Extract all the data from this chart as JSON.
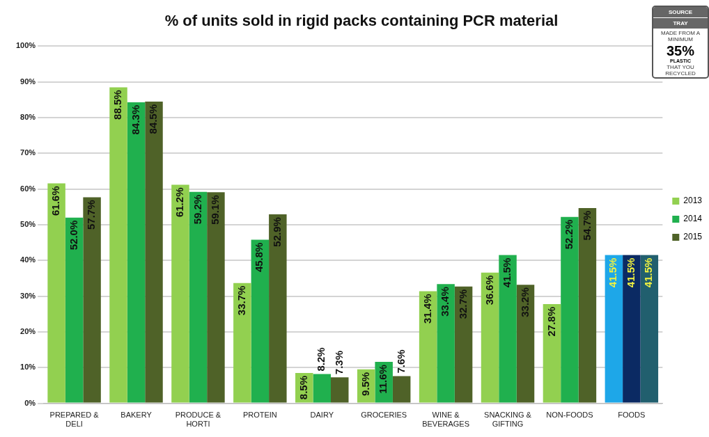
{
  "chart_data": {
    "type": "bar",
    "title": "% of units sold in rigid packs containing PCR material",
    "categories": [
      "PREPARED & DELI",
      "BAKERY",
      "PRODUCE & HORTI",
      "PROTEIN",
      "DAIRY",
      "GROCERIES",
      "WINE & BEVERAGES",
      "SNACKING & GIFTING",
      "NON-FOODS",
      "FOODS"
    ],
    "series": [
      {
        "name": "2013",
        "color": "#92d050",
        "colors": [
          "#92d050",
          "#92d050",
          "#92d050",
          "#92d050",
          "#92d050",
          "#92d050",
          "#92d050",
          "#92d050",
          "#92d050",
          "#1ea7e8"
        ],
        "values": [
          61.6,
          88.5,
          61.2,
          33.7,
          8.5,
          9.5,
          31.4,
          36.6,
          27.8,
          41.5
        ],
        "value_labels": [
          "61.6%",
          "88.5%",
          "61.2%",
          "33.7%",
          "8.5%",
          "9.5%",
          "31.4%",
          "36.6%",
          "27.8%",
          "41.5%"
        ]
      },
      {
        "name": "2014",
        "color": "#20b04e",
        "colors": [
          "#20b04e",
          "#20b04e",
          "#20b04e",
          "#20b04e",
          "#20b04e",
          "#20b04e",
          "#20b04e",
          "#20b04e",
          "#20b04e",
          "#0b2a63"
        ],
        "values": [
          52.0,
          84.3,
          59.2,
          45.8,
          8.2,
          11.6,
          33.4,
          41.5,
          52.2,
          41.5
        ],
        "value_labels": [
          "52.0%",
          "84.3%",
          "59.2%",
          "45.8%",
          "8.2%",
          "11.6%",
          "33.4%",
          "41.5%",
          "52.2%",
          "41.5%"
        ]
      },
      {
        "name": "2015",
        "color": "#4f6228",
        "colors": [
          "#4f6228",
          "#4f6228",
          "#4f6228",
          "#4f6228",
          "#4f6228",
          "#4f6228",
          "#4f6228",
          "#4f6228",
          "#4f6228",
          "#215f6e"
        ],
        "values": [
          57.7,
          84.5,
          59.1,
          52.9,
          7.3,
          7.6,
          32.7,
          33.2,
          54.7,
          41.5
        ],
        "value_labels": [
          "57.7%",
          "84.5%",
          "59.1%",
          "52.9%",
          "7.3%",
          "7.6%",
          "32.7%",
          "33.2%",
          "54.7%",
          "41.5%"
        ]
      }
    ],
    "ylim": [
      0,
      100
    ],
    "yticks": [
      {
        "value": 0,
        "label": "0%"
      },
      {
        "value": 10,
        "label": "10%"
      },
      {
        "value": 20,
        "label": "20%"
      },
      {
        "value": 30,
        "label": "30%"
      },
      {
        "value": 40,
        "label": "40%"
      },
      {
        "value": 50,
        "label": "50%"
      },
      {
        "value": 60,
        "label": "60%"
      },
      {
        "value": 70,
        "label": "70%"
      },
      {
        "value": 80,
        "label": "80%"
      },
      {
        "value": 90,
        "label": "90%"
      },
      {
        "value": 100,
        "label": "100%"
      }
    ],
    "grid": "y",
    "legend": "right",
    "annotations": [
      "SOURCE",
      "TRAY",
      "MADE FROM A MINIMUM",
      "35%",
      "PLASTIC",
      "THAT YOU RECYCLED"
    ]
  }
}
